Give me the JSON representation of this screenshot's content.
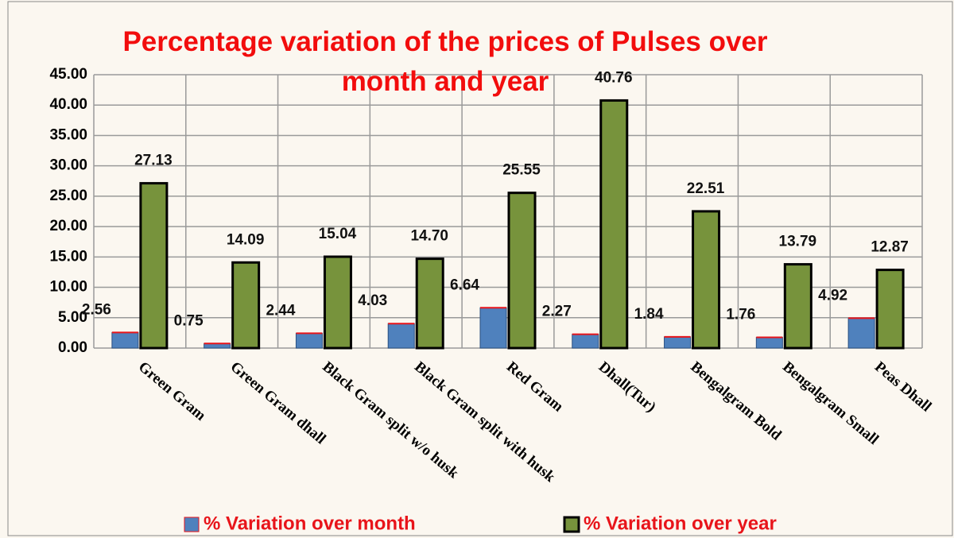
{
  "chart_data": {
    "type": "bar",
    "title": "Percentage variation of the prices of Pulses over month and year",
    "categories": [
      "Green Gram",
      "Green Gram dhall",
      "Black Gram split w/o husk",
      "Black Gram split with husk",
      "Red Gram",
      "Dhall(Tur)",
      "Bengalgram Bold",
      "Bengalgram Small",
      "Peas Dhall"
    ],
    "series": [
      {
        "name": "% Variation over month",
        "color": "#4f81bd",
        "values": [
          2.56,
          0.75,
          2.44,
          4.03,
          6.64,
          2.27,
          1.84,
          1.76,
          4.92
        ],
        "value_labels": [
          "2.56",
          "0.75",
          "2.44",
          "4.03",
          "6.64",
          "2.27",
          "1.84",
          "1.76",
          "4.92"
        ]
      },
      {
        "name": "% Variation over year",
        "color": "#77933c",
        "values": [
          27.13,
          14.09,
          15.04,
          14.7,
          25.55,
          40.76,
          22.51,
          13.79,
          12.87
        ],
        "value_labels": [
          "27.13",
          "14.09",
          "15.04",
          "14.70",
          "25.55",
          "40.76",
          "22.51",
          "13.79",
          "12.87"
        ]
      }
    ],
    "ylim": [
      0,
      45
    ],
    "yticks": [
      {
        "value": 0,
        "label": "0.00"
      },
      {
        "value": 5,
        "label": "5.00"
      },
      {
        "value": 10,
        "label": "10.00"
      },
      {
        "value": 15,
        "label": "15.00"
      },
      {
        "value": 20,
        "label": "20.00"
      },
      {
        "value": 25,
        "label": "25.00"
      },
      {
        "value": 30,
        "label": "30.00"
      },
      {
        "value": 35,
        "label": "35.00"
      },
      {
        "value": 40,
        "label": "40.00"
      },
      {
        "value": 45,
        "label": "45.00"
      }
    ],
    "grid": true,
    "legend": "bottom"
  }
}
